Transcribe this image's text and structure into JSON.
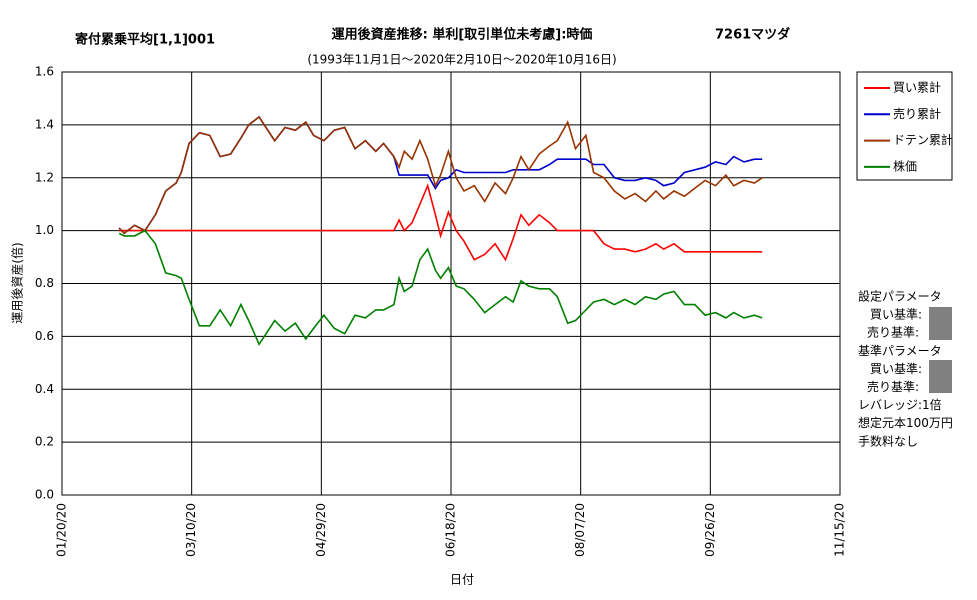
{
  "chart_data": {
    "type": "line",
    "strategy": "寄付累乗平均[1,1]001",
    "title": "運用後資産推移: 単利[取引単位未考慮]:時価",
    "subtitle": "(1993年11月1日～2020年2月10日～2020年10月16日)",
    "ticker": "7261マツダ",
    "x_label": "日付",
    "y_label": "運用後資産(倍)",
    "grid": true,
    "legend": "right",
    "xlim": [
      "01/20/20",
      "11/15/20"
    ],
    "xticks": [
      "01/20/20",
      "03/10/20",
      "04/29/20",
      "06/18/20",
      "08/07/20",
      "09/26/20",
      "11/15/20"
    ],
    "ylim": [
      0,
      1.6
    ],
    "yticks": [
      {
        "value": 0,
        "label": "0.0"
      },
      0.2,
      0.4,
      0.6,
      0.8,
      {
        "value": 1,
        "label": "1.0"
      },
      1.2,
      1.4,
      1.6
    ],
    "x": [
      "02/11/20",
      "02/13/20",
      "02/17/20",
      "02/21/20",
      "02/25/20",
      "02/29/20",
      "03/04/20",
      "03/06/20",
      "03/09/20",
      "03/13/20",
      "03/17/20",
      "03/21/20",
      "03/25/20",
      "03/29/20",
      "04/01/20",
      "04/05/20",
      "04/07/20",
      "04/11/20",
      "04/15/20",
      "04/19/20",
      "04/23/20",
      "04/26/20",
      "04/30/20",
      "05/04/20",
      "05/08/20",
      "05/12/20",
      "05/16/20",
      "05/20/20",
      "05/23/20",
      "05/27/20",
      "05/29/20",
      "05/31/20",
      "06/03/20",
      "06/06/20",
      "06/09/20",
      "06/12/20",
      "06/14/20",
      "06/17/20",
      "06/20/20",
      "06/23/20",
      "06/27/20",
      "07/01/20",
      "07/05/20",
      "07/09/20",
      "07/12/20",
      "07/15/20",
      "07/18/20",
      "07/22/20",
      "07/26/20",
      "07/29/20",
      "08/02/20",
      "08/05/20",
      "08/09/20",
      "08/12/20",
      "08/16/20",
      "08/20/20",
      "08/24/20",
      "08/28/20",
      "09/01/20",
      "09/05/20",
      "09/08/20",
      "09/12/20",
      "09/16/20",
      "09/20/20",
      "09/24/20",
      "09/28/20",
      "10/02/20",
      "10/05/20",
      "10/09/20",
      "10/13/20",
      "10/16/20"
    ],
    "series": [
      {
        "name": "買い累計",
        "color": "#ff0000",
        "values": [
          1.0,
          1.0,
          1.0,
          1.0,
          1.0,
          1.0,
          1.0,
          1.0,
          1.0,
          1.0,
          1.0,
          1.0,
          1.0,
          1.0,
          1.0,
          1.0,
          1.0,
          1.0,
          1.0,
          1.0,
          1.0,
          1.0,
          1.0,
          1.0,
          1.0,
          1.0,
          1.0,
          1.0,
          1.0,
          1.0,
          1.04,
          1.0,
          1.03,
          1.1,
          1.17,
          1.06,
          0.98,
          1.07,
          1.0,
          0.96,
          0.89,
          0.91,
          0.95,
          0.89,
          0.97,
          1.06,
          1.02,
          1.06,
          1.03,
          1.0,
          1.0,
          1.0,
          1.0,
          1.0,
          0.95,
          0.93,
          0.93,
          0.92,
          0.93,
          0.95,
          0.93,
          0.95,
          0.92,
          0.92,
          0.92,
          0.92,
          0.92,
          0.92,
          0.92,
          0.92,
          0.92
        ]
      },
      {
        "name": "売り累計",
        "color": "#0000cc",
        "values": [
          1.01,
          0.99,
          1.02,
          1.0,
          1.06,
          1.15,
          1.18,
          1.22,
          1.33,
          1.37,
          1.36,
          1.28,
          1.29,
          1.35,
          1.4,
          1.43,
          1.4,
          1.34,
          1.39,
          1.38,
          1.41,
          1.36,
          1.34,
          1.38,
          1.39,
          1.31,
          1.34,
          1.3,
          1.33,
          1.28,
          1.21,
          1.21,
          1.21,
          1.21,
          1.21,
          1.16,
          1.19,
          1.2,
          1.23,
          1.22,
          1.22,
          1.22,
          1.22,
          1.22,
          1.23,
          1.23,
          1.23,
          1.23,
          1.25,
          1.27,
          1.27,
          1.27,
          1.27,
          1.25,
          1.25,
          1.2,
          1.19,
          1.19,
          1.2,
          1.19,
          1.17,
          1.18,
          1.22,
          1.23,
          1.24,
          1.26,
          1.25,
          1.28,
          1.26,
          1.27,
          1.27
        ]
      },
      {
        "name": "ドテン累計",
        "color": "#993300",
        "values": [
          1.01,
          0.99,
          1.02,
          1.0,
          1.06,
          1.15,
          1.18,
          1.22,
          1.33,
          1.37,
          1.36,
          1.28,
          1.29,
          1.35,
          1.4,
          1.43,
          1.4,
          1.34,
          1.39,
          1.38,
          1.41,
          1.36,
          1.34,
          1.38,
          1.39,
          1.31,
          1.34,
          1.3,
          1.33,
          1.28,
          1.24,
          1.3,
          1.27,
          1.34,
          1.27,
          1.17,
          1.21,
          1.3,
          1.2,
          1.15,
          1.17,
          1.11,
          1.18,
          1.14,
          1.2,
          1.28,
          1.23,
          1.29,
          1.32,
          1.34,
          1.41,
          1.31,
          1.36,
          1.22,
          1.2,
          1.15,
          1.12,
          1.14,
          1.11,
          1.15,
          1.12,
          1.15,
          1.13,
          1.16,
          1.19,
          1.17,
          1.21,
          1.17,
          1.19,
          1.18,
          1.2
        ]
      },
      {
        "name": "株価",
        "color": "#008000",
        "values": [
          0.99,
          0.98,
          0.98,
          1.0,
          0.95,
          0.84,
          0.83,
          0.82,
          0.74,
          0.64,
          0.64,
          0.7,
          0.64,
          0.72,
          0.66,
          0.57,
          0.6,
          0.66,
          0.62,
          0.65,
          0.59,
          0.63,
          0.68,
          0.63,
          0.61,
          0.68,
          0.67,
          0.7,
          0.7,
          0.72,
          0.82,
          0.77,
          0.79,
          0.89,
          0.93,
          0.85,
          0.82,
          0.86,
          0.79,
          0.78,
          0.74,
          0.69,
          0.72,
          0.75,
          0.73,
          0.81,
          0.79,
          0.78,
          0.78,
          0.75,
          0.65,
          0.66,
          0.7,
          0.73,
          0.74,
          0.72,
          0.74,
          0.72,
          0.75,
          0.74,
          0.76,
          0.77,
          0.72,
          0.72,
          0.68,
          0.69,
          0.67,
          0.69,
          0.67,
          0.68,
          0.67
        ]
      }
    ]
  },
  "parameters": [
    "設定パラメータ",
    "買い基準:",
    "売り基準:",
    "基準パラメータ",
    "買い基準:",
    "売り基準:",
    "レバレッジ:1倍",
    "想定元本100万円",
    "手数料なし"
  ]
}
